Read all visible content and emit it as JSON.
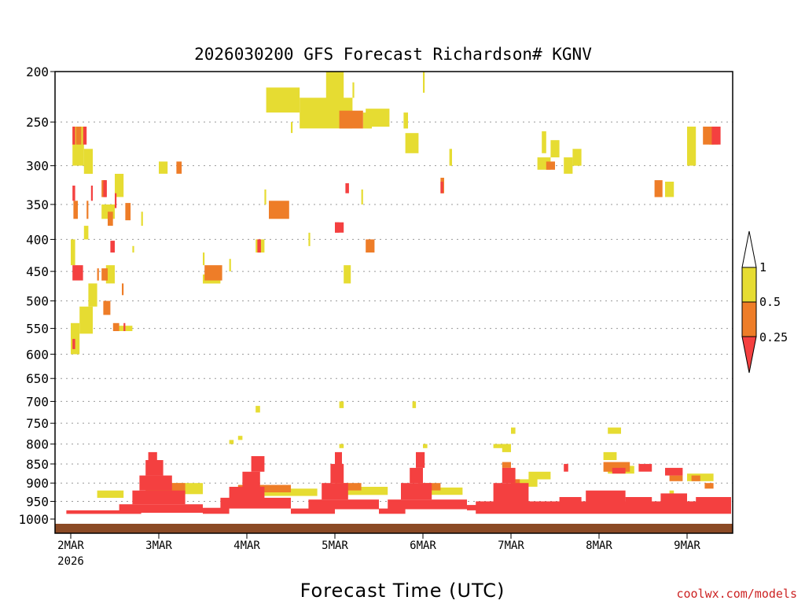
{
  "chart_data": {
    "type": "heatmap",
    "title": "2026030200 GFS Forecast Richardson# KGNV",
    "xlabel": "Forecast Time (UTC)",
    "ylabel": "",
    "credit": "coolwx.com/models",
    "y_axis_unit": "hPa",
    "ylim": [
      1000,
      200
    ],
    "xlim_days": [
      0,
      7.5
    ],
    "y_ticks": [
      200,
      250,
      300,
      350,
      400,
      450,
      500,
      550,
      600,
      650,
      700,
      750,
      800,
      850,
      900,
      950,
      1000
    ],
    "x_ticks": [
      {
        "day": 0,
        "label": "2MAR",
        "sublabel": "2026"
      },
      {
        "day": 1,
        "label": "3MAR"
      },
      {
        "day": 2,
        "label": "4MAR"
      },
      {
        "day": 3,
        "label": "5MAR"
      },
      {
        "day": 4,
        "label": "6MAR"
      },
      {
        "day": 5,
        "label": "7MAR"
      },
      {
        "day": 6,
        "label": "8MAR"
      },
      {
        "day": 7,
        "label": "9MAR"
      }
    ],
    "legend": {
      "placement": "right",
      "levels": [
        {
          "label": "1",
          "color": "#ffffff"
        },
        {
          "label": "0.5",
          "color": "#e6dc32"
        },
        {
          "label": "0.25",
          "color": "#ee7d28"
        },
        {
          "label": "",
          "color": "#f44040"
        }
      ]
    },
    "colors": {
      "below_0.25": "#f44040",
      "0.25_to_0.5": "#ee7d28",
      "0.5_to_1": "#e6dc32",
      "ground": "#8b4a25",
      "grid": "#999999"
    },
    "series": [
      {
        "name": "Ri < 0.25",
        "cells": [
          [
            0.02,
            0.14,
            440,
            465
          ],
          [
            0.02,
            0.05,
            325,
            345
          ],
          [
            0.02,
            0.05,
            255,
            275
          ],
          [
            0.14,
            0.18,
            255,
            275
          ],
          [
            0.23,
            0.25,
            325,
            345
          ],
          [
            0.37,
            0.41,
            318,
            340
          ],
          [
            0.5,
            0.52,
            335,
            355
          ],
          [
            0.6,
            0.62,
            540,
            555
          ],
          [
            0.45,
            0.5,
            402,
            420
          ],
          [
            0.02,
            0.05,
            570,
            590
          ],
          [
            2.12,
            2.16,
            400,
            420
          ],
          [
            3.0,
            3.05,
            375,
            390
          ],
          [
            3.12,
            3.16,
            322,
            335
          ],
          [
            4.2,
            4.23,
            320,
            335
          ],
          [
            7.28,
            7.38,
            255,
            275
          ],
          [
            3.0,
            3.1,
            375,
            390
          ],
          [
            0.55,
            1.5,
            958,
            982
          ],
          [
            0.7,
            1.3,
            920,
            958
          ],
          [
            0.78,
            1.15,
            880,
            920
          ],
          [
            0.85,
            1.05,
            840,
            880
          ],
          [
            0.88,
            0.98,
            820,
            840
          ],
          [
            1.5,
            1.8,
            968,
            985
          ],
          [
            1.7,
            2.5,
            940,
            970
          ],
          [
            1.8,
            2.2,
            910,
            940
          ],
          [
            1.95,
            2.15,
            870,
            910
          ],
          [
            2.05,
            2.2,
            830,
            870
          ],
          [
            2.5,
            3.0,
            970,
            985
          ],
          [
            2.7,
            3.5,
            945,
            972
          ],
          [
            2.85,
            3.15,
            900,
            945
          ],
          [
            2.95,
            3.1,
            850,
            900
          ],
          [
            3.0,
            3.08,
            820,
            850
          ],
          [
            3.5,
            3.8,
            970,
            985
          ],
          [
            3.6,
            4.5,
            945,
            972
          ],
          [
            3.75,
            4.1,
            900,
            945
          ],
          [
            3.85,
            4.0,
            860,
            900
          ],
          [
            3.92,
            4.02,
            820,
            860
          ],
          [
            4.6,
            7.5,
            950,
            985
          ],
          [
            4.8,
            5.2,
            900,
            950
          ],
          [
            4.9,
            5.05,
            860,
            900
          ],
          [
            5.55,
            5.8,
            938,
            955
          ],
          [
            5.85,
            6.3,
            920,
            950
          ],
          [
            6.3,
            6.6,
            938,
            955
          ],
          [
            6.7,
            7.0,
            928,
            952
          ],
          [
            6.75,
            6.95,
            860,
            880
          ],
          [
            7.1,
            7.5,
            938,
            960
          ],
          [
            5.6,
            5.65,
            850,
            870
          ],
          [
            6.15,
            6.3,
            860,
            875
          ],
          [
            6.45,
            6.6,
            850,
            870
          ],
          [
            -0.05,
            0.8,
            975,
            985
          ],
          [
            4.5,
            4.8,
            960,
            975
          ]
        ]
      },
      {
        "name": "0.25 <= Ri < 0.5",
        "cells": [
          [
            2.25,
            2.48,
            345,
            370
          ],
          [
            3.05,
            3.32,
            238,
            257
          ],
          [
            0.58,
            0.6,
            470,
            490
          ],
          [
            0.62,
            0.68,
            348,
            372
          ],
          [
            1.52,
            1.72,
            440,
            465
          ],
          [
            3.35,
            3.45,
            400,
            420
          ],
          [
            0.42,
            0.48,
            360,
            380
          ],
          [
            0.48,
            0.55,
            540,
            555
          ],
          [
            0.06,
            0.12,
            255,
            275
          ],
          [
            0.03,
            0.08,
            345,
            370
          ],
          [
            0.18,
            0.2,
            345,
            370
          ],
          [
            0.3,
            0.32,
            445,
            465
          ],
          [
            0.37,
            0.45,
            500,
            525
          ],
          [
            0.35,
            0.42,
            445,
            465
          ],
          [
            0.35,
            0.4,
            318,
            340
          ],
          [
            1.2,
            1.26,
            295,
            310
          ],
          [
            4.2,
            4.24,
            315,
            335
          ],
          [
            6.63,
            6.72,
            318,
            340
          ],
          [
            7.18,
            7.3,
            255,
            275
          ],
          [
            5.4,
            5.5,
            295,
            305
          ],
          [
            0.85,
            1.3,
            900,
            930
          ],
          [
            1.9,
            2.5,
            905,
            925
          ],
          [
            3.0,
            3.3,
            900,
            920
          ],
          [
            3.95,
            4.2,
            900,
            920
          ],
          [
            4.9,
            5.0,
            845,
            860
          ],
          [
            5.0,
            5.1,
            890,
            905
          ],
          [
            6.05,
            6.35,
            845,
            870
          ],
          [
            6.8,
            6.95,
            880,
            895
          ],
          [
            7.05,
            7.15,
            880,
            895
          ],
          [
            7.2,
            7.3,
            900,
            915
          ]
        ]
      },
      {
        "name": "0.5 <= Ri < 1",
        "cells": [
          [
            2.22,
            2.6,
            215,
            240
          ],
          [
            2.9,
            3.1,
            200,
            240
          ],
          [
            3.32,
            3.42,
            240,
            257
          ],
          [
            2.6,
            3.2,
            225,
            257
          ],
          [
            3.35,
            3.62,
            236,
            255
          ],
          [
            3.2,
            3.22,
            210,
            225
          ],
          [
            3.8,
            3.95,
            262,
            285
          ],
          [
            4.0,
            4.02,
            200,
            220
          ],
          [
            4.2,
            4.24,
            315,
            335
          ],
          [
            5.3,
            5.45,
            290,
            305
          ],
          [
            5.35,
            5.4,
            260,
            285
          ],
          [
            5.6,
            5.7,
            290,
            310
          ],
          [
            6.75,
            6.85,
            320,
            340
          ],
          [
            7.0,
            7.1,
            255,
            300
          ],
          [
            7.25,
            7.35,
            258,
            275
          ],
          [
            1.0,
            1.1,
            295,
            310
          ],
          [
            0.02,
            0.15,
            255,
            300
          ],
          [
            0.15,
            0.25,
            280,
            310
          ],
          [
            0.5,
            0.6,
            310,
            340
          ],
          [
            0.35,
            0.5,
            350,
            370
          ],
          [
            0.0,
            0.05,
            400,
            440
          ],
          [
            0.4,
            0.5,
            440,
            470
          ],
          [
            0.2,
            0.3,
            470,
            510
          ],
          [
            0.1,
            0.25,
            510,
            560
          ],
          [
            0.0,
            0.1,
            540,
            600
          ],
          [
            0.5,
            0.7,
            545,
            555
          ],
          [
            1.5,
            1.7,
            455,
            470
          ],
          [
            2.1,
            2.2,
            400,
            420
          ],
          [
            2.7,
            2.72,
            390,
            410
          ],
          [
            1.8,
            1.82,
            430,
            450
          ],
          [
            3.1,
            3.18,
            440,
            470
          ],
          [
            2.5,
            2.52,
            250,
            262
          ],
          [
            3.78,
            3.83,
            240,
            257
          ],
          [
            4.3,
            4.33,
            280,
            300
          ],
          [
            5.7,
            5.8,
            280,
            300
          ],
          [
            5.45,
            5.55,
            270,
            290
          ],
          [
            0.15,
            0.2,
            380,
            400
          ],
          [
            0.7,
            0.72,
            410,
            420
          ],
          [
            0.8,
            0.82,
            360,
            380
          ],
          [
            1.5,
            1.52,
            420,
            440
          ],
          [
            2.2,
            2.22,
            330,
            350
          ],
          [
            3.3,
            3.32,
            330,
            350
          ],
          [
            0.3,
            0.6,
            920,
            940
          ],
          [
            1.1,
            1.5,
            900,
            930
          ],
          [
            2.1,
            2.8,
            915,
            935
          ],
          [
            3.1,
            3.6,
            910,
            932
          ],
          [
            4.05,
            4.45,
            912,
            932
          ],
          [
            5.05,
            5.3,
            890,
            910
          ],
          [
            5.2,
            5.45,
            870,
            890
          ],
          [
            6.1,
            6.4,
            855,
            875
          ],
          [
            6.05,
            6.2,
            820,
            840
          ],
          [
            7.0,
            7.3,
            875,
            895
          ],
          [
            4.9,
            5.0,
            800,
            820
          ],
          [
            5.0,
            5.05,
            760,
            775
          ],
          [
            6.1,
            6.25,
            760,
            775
          ],
          [
            2.1,
            2.15,
            710,
            725
          ],
          [
            1.9,
            1.95,
            780,
            790
          ],
          [
            4.8,
            5.0,
            800,
            810
          ],
          [
            3.05,
            3.1,
            800,
            810
          ],
          [
            4.0,
            4.05,
            800,
            810
          ],
          [
            1.8,
            1.85,
            790,
            800
          ],
          [
            3.88,
            3.92,
            700,
            715
          ],
          [
            6.8,
            6.85,
            920,
            935
          ],
          [
            3.05,
            3.1,
            700,
            715
          ]
        ]
      }
    ]
  }
}
